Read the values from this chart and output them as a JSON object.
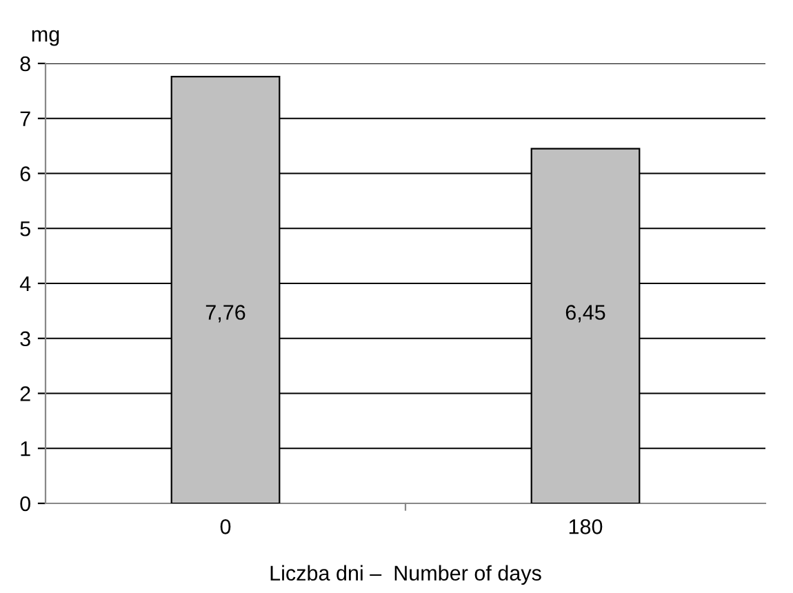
{
  "chart_data": {
    "type": "bar",
    "ylabel": "mg",
    "xlabel": "Liczba dni –  Number of days",
    "categories": [
      "0",
      "180"
    ],
    "values": [
      7.76,
      6.45
    ],
    "value_labels": [
      "7,76",
      "6,45"
    ],
    "color": "#c0c0c0",
    "ylim": [
      0,
      8
    ],
    "yticks": [
      0,
      1,
      2,
      3,
      4,
      5,
      6,
      7,
      8
    ],
    "grid": "y",
    "legend": false
  }
}
